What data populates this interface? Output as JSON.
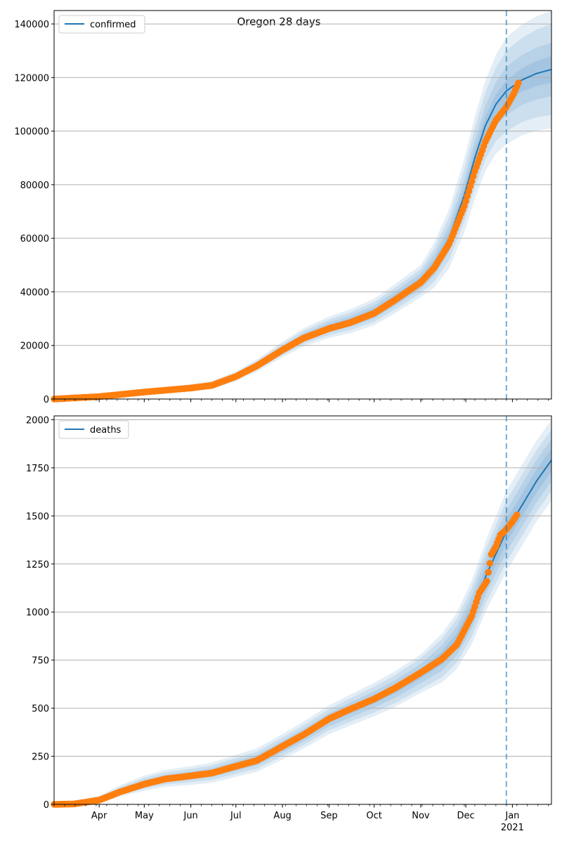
{
  "figure_title": "Oregon 28 days",
  "colors": {
    "model_line": "#1f77b4",
    "band": "#1f77b4",
    "observed": "#ff7f0e",
    "forecast_line": "#1f77b4",
    "grid": "#b0b0b0",
    "axis": "#000000"
  },
  "x_axis": {
    "start": "2020-03-02",
    "end": "2021-01-27",
    "forecast_start": "2020-12-28",
    "month_ticks": [
      "2020-04-01",
      "2020-05-01",
      "2020-06-01",
      "2020-07-01",
      "2020-08-01",
      "2020-09-01",
      "2020-10-01",
      "2020-11-01",
      "2020-12-01",
      "2021-01-01"
    ],
    "month_labels": [
      "Apr",
      "May",
      "Jun",
      "Jul",
      "Aug",
      "Sep",
      "Oct",
      "Nov",
      "Dec",
      "Jan"
    ],
    "year_label": "2021"
  },
  "chart_data": [
    {
      "type": "line",
      "legend": "confirmed",
      "legend_position": "top-left",
      "grid": "y",
      "ylim": [
        0,
        145000
      ],
      "yticks": [
        0,
        20000,
        40000,
        60000,
        80000,
        100000,
        120000,
        140000
      ],
      "ytick_labels": [
        "0",
        "20000",
        "40000",
        "60000",
        "80000",
        "100000",
        "120000",
        "140000"
      ],
      "model_points": [
        [
          "2020-03-02",
          0
        ],
        [
          "2020-04-01",
          1000
        ],
        [
          "2020-05-01",
          2700
        ],
        [
          "2020-06-01",
          4200
        ],
        [
          "2020-06-15",
          5200
        ],
        [
          "2020-07-01",
          8500
        ],
        [
          "2020-07-15",
          12500
        ],
        [
          "2020-08-01",
          18500
        ],
        [
          "2020-08-15",
          23000
        ],
        [
          "2020-09-01",
          26800
        ],
        [
          "2020-09-15",
          29000
        ],
        [
          "2020-10-01",
          32500
        ],
        [
          "2020-10-15",
          37500
        ],
        [
          "2020-11-01",
          44000
        ],
        [
          "2020-11-10",
          50000
        ],
        [
          "2020-11-20",
          60000
        ],
        [
          "2020-11-30",
          76000
        ],
        [
          "2020-12-07",
          90000
        ],
        [
          "2020-12-14",
          102000
        ],
        [
          "2020-12-21",
          110000
        ],
        [
          "2020-12-28",
          115000
        ],
        [
          "2021-01-07",
          119000
        ],
        [
          "2021-01-17",
          121500
        ],
        [
          "2021-01-27",
          123000
        ]
      ],
      "band_widths": [
        [
          [
            "2020-03-02",
            0
          ],
          [
            "2020-07-01",
            300
          ],
          [
            "2020-09-01",
            900
          ],
          [
            "2020-11-01",
            1600
          ],
          [
            "2020-12-01",
            3000
          ],
          [
            "2020-12-28",
            4000
          ],
          [
            "2021-01-27",
            5000
          ]
        ],
        [
          [
            "2020-03-02",
            0
          ],
          [
            "2020-07-01",
            800
          ],
          [
            "2020-09-01",
            1800
          ],
          [
            "2020-11-01",
            3000
          ],
          [
            "2020-12-01",
            6000
          ],
          [
            "2020-12-28",
            9000
          ],
          [
            "2021-01-27",
            10000
          ]
        ],
        [
          [
            "2020-03-02",
            0
          ],
          [
            "2020-07-01",
            1300
          ],
          [
            "2020-09-01",
            2900
          ],
          [
            "2020-11-01",
            4500
          ],
          [
            "2020-12-01",
            10000
          ],
          [
            "2020-12-28",
            15000
          ],
          [
            "2021-01-27",
            17000
          ]
        ],
        [
          [
            "2020-03-02",
            0
          ],
          [
            "2020-07-01",
            1800
          ],
          [
            "2020-09-01",
            4000
          ],
          [
            "2020-11-01",
            6000
          ],
          [
            "2020-12-01",
            14000
          ],
          [
            "2020-12-28",
            20000
          ],
          [
            "2021-01-27",
            22000
          ]
        ]
      ],
      "observed_points": [
        [
          "2020-03-02",
          0
        ],
        [
          "2020-04-01",
          900
        ],
        [
          "2020-05-01",
          2600
        ],
        [
          "2020-06-01",
          4100
        ],
        [
          "2020-06-15",
          5100
        ],
        [
          "2020-07-01",
          8400
        ],
        [
          "2020-07-15",
          12400
        ],
        [
          "2020-08-01",
          18300
        ],
        [
          "2020-08-15",
          22700
        ],
        [
          "2020-09-01",
          26300
        ],
        [
          "2020-09-15",
          28500
        ],
        [
          "2020-10-01",
          32000
        ],
        [
          "2020-10-15",
          37000
        ],
        [
          "2020-11-01",
          43500
        ],
        [
          "2020-11-10",
          49000
        ],
        [
          "2020-11-20",
          58000
        ],
        [
          "2020-11-30",
          72000
        ],
        [
          "2020-12-07",
          85000
        ],
        [
          "2020-12-14",
          96000
        ],
        [
          "2020-12-21",
          104000
        ],
        [
          "2020-12-28",
          109000
        ],
        [
          "2021-01-02",
          114000
        ],
        [
          "2021-01-05",
          118000
        ]
      ]
    },
    {
      "type": "line",
      "legend": "deaths",
      "legend_position": "top-left",
      "grid": "y",
      "ylim": [
        0,
        2020
      ],
      "yticks": [
        0,
        250,
        500,
        750,
        1000,
        1250,
        1500,
        1750,
        2000
      ],
      "ytick_labels": [
        "0",
        "250",
        "500",
        "750",
        "1000",
        "1250",
        "1500",
        "1750",
        "2000"
      ],
      "model_points": [
        [
          "2020-03-02",
          0
        ],
        [
          "2020-03-15",
          3
        ],
        [
          "2020-04-01",
          25
        ],
        [
          "2020-04-15",
          70
        ],
        [
          "2020-05-01",
          110
        ],
        [
          "2020-05-15",
          135
        ],
        [
          "2020-06-01",
          150
        ],
        [
          "2020-06-15",
          165
        ],
        [
          "2020-07-01",
          200
        ],
        [
          "2020-07-15",
          230
        ],
        [
          "2020-08-01",
          300
        ],
        [
          "2020-08-15",
          360
        ],
        [
          "2020-09-01",
          440
        ],
        [
          "2020-09-15",
          490
        ],
        [
          "2020-10-01",
          545
        ],
        [
          "2020-10-15",
          600
        ],
        [
          "2020-11-01",
          680
        ],
        [
          "2020-11-15",
          760
        ],
        [
          "2020-11-25",
          850
        ],
        [
          "2020-12-05",
          1000
        ],
        [
          "2020-12-15",
          1200
        ],
        [
          "2020-12-28",
          1420
        ],
        [
          "2021-01-07",
          1550
        ],
        [
          "2021-01-17",
          1680
        ],
        [
          "2021-01-27",
          1790
        ]
      ],
      "band_widths": [
        [
          [
            "2020-03-02",
            0
          ],
          [
            "2020-05-01",
            8
          ],
          [
            "2020-09-01",
            15
          ],
          [
            "2020-11-01",
            25
          ],
          [
            "2020-12-28",
            60
          ],
          [
            "2021-01-27",
            60
          ]
        ],
        [
          [
            "2020-03-02",
            0
          ],
          [
            "2020-05-01",
            16
          ],
          [
            "2020-09-01",
            35
          ],
          [
            "2020-11-01",
            50
          ],
          [
            "2020-12-28",
            110
          ],
          [
            "2021-01-27",
            110
          ]
        ],
        [
          [
            "2020-03-02",
            0
          ],
          [
            "2020-05-01",
            28
          ],
          [
            "2020-09-01",
            55
          ],
          [
            "2020-11-01",
            80
          ],
          [
            "2020-12-28",
            160
          ],
          [
            "2021-01-27",
            160
          ]
        ],
        [
          [
            "2020-03-02",
            0
          ],
          [
            "2020-05-01",
            40
          ],
          [
            "2020-09-01",
            75
          ],
          [
            "2020-11-01",
            100
          ],
          [
            "2020-12-28",
            210
          ],
          [
            "2021-01-27",
            210
          ]
        ]
      ],
      "observed_points": [
        [
          "2020-03-02",
          0
        ],
        [
          "2020-03-15",
          2
        ],
        [
          "2020-04-01",
          22
        ],
        [
          "2020-04-15",
          65
        ],
        [
          "2020-05-01",
          105
        ],
        [
          "2020-05-15",
          132
        ],
        [
          "2020-06-01",
          148
        ],
        [
          "2020-06-15",
          163
        ],
        [
          "2020-07-01",
          198
        ],
        [
          "2020-07-15",
          228
        ],
        [
          "2020-08-01",
          302
        ],
        [
          "2020-08-15",
          362
        ],
        [
          "2020-09-01",
          445
        ],
        [
          "2020-09-15",
          495
        ],
        [
          "2020-10-01",
          548
        ],
        [
          "2020-10-15",
          605
        ],
        [
          "2020-11-01",
          685
        ],
        [
          "2020-11-15",
          755
        ],
        [
          "2020-11-25",
          830
        ],
        [
          "2020-12-05",
          980
        ],
        [
          "2020-12-10",
          1100
        ],
        [
          "2020-12-15",
          1160
        ],
        [
          "2020-12-18",
          1300
        ],
        [
          "2020-12-21",
          1340
        ],
        [
          "2020-12-24",
          1400
        ],
        [
          "2020-12-28",
          1430
        ],
        [
          "2021-01-01",
          1470
        ],
        [
          "2021-01-04",
          1505
        ]
      ]
    }
  ]
}
